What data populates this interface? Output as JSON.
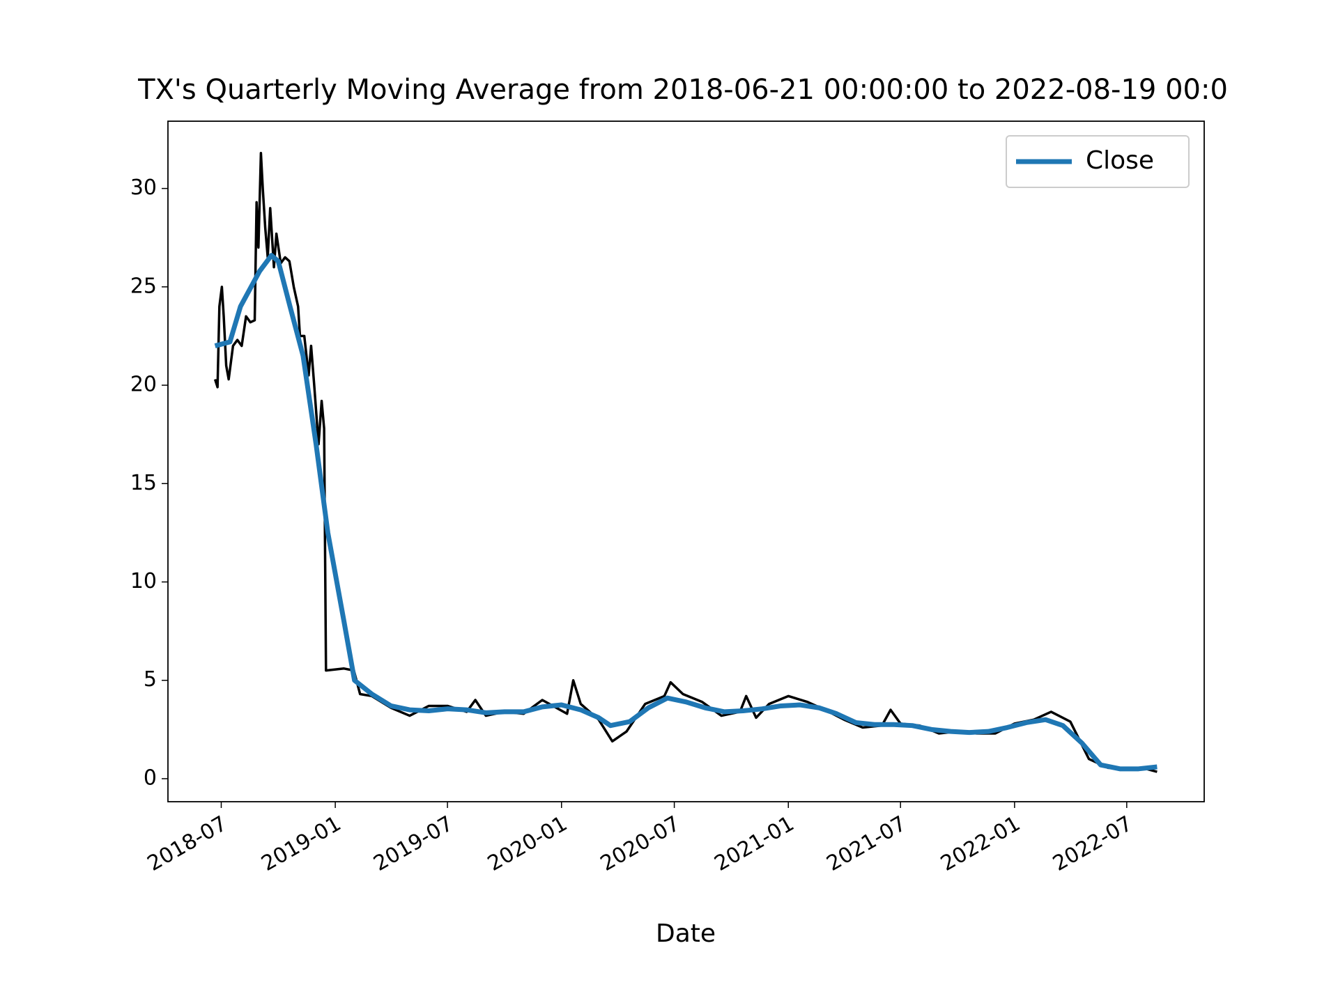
{
  "chart_data": {
    "type": "line",
    "title": "TX's Quarterly Moving Average from 2018-06-21 00:00:00 to 2022-08-19 00:0",
    "x_label": "Date",
    "xlim": [
      "2018-04-06",
      "2022-11-03"
    ],
    "xticks": [
      "2018-07",
      "2019-01",
      "2019-07",
      "2020-01",
      "2020-07",
      "2021-01",
      "2021-07",
      "2022-01",
      "2022-07"
    ],
    "ylim": [
      -1.17,
      33.42
    ],
    "yticks": [
      0,
      5,
      10,
      15,
      20,
      25,
      30
    ],
    "legend": "upper right",
    "series": [
      {
        "color": "#000000",
        "x": [
          "2018-06-21",
          "2018-06-25",
          "2018-06-28",
          "2018-07-02",
          "2018-07-05",
          "2018-07-09",
          "2018-07-13",
          "2018-07-20",
          "2018-07-27",
          "2018-08-03",
          "2018-08-10",
          "2018-08-17",
          "2018-08-24",
          "2018-08-27",
          "2018-08-30",
          "2018-09-03",
          "2018-09-06",
          "2018-09-10",
          "2018-09-14",
          "2018-09-18",
          "2018-09-24",
          "2018-09-28",
          "2018-10-05",
          "2018-10-12",
          "2018-10-19",
          "2018-10-26",
          "2018-11-02",
          "2018-11-05",
          "2018-11-12",
          "2018-11-19",
          "2018-11-23",
          "2018-11-28",
          "2018-12-05",
          "2018-12-10",
          "2018-12-14",
          "2018-12-17",
          "2019-01-15",
          "2019-01-31",
          "2019-02-10",
          "2019-03-01",
          "2019-04-01",
          "2019-05-01",
          "2019-06-01",
          "2019-07-01",
          "2019-08-01",
          "2019-08-15",
          "2019-09-01",
          "2019-10-01",
          "2019-11-01",
          "2019-12-01",
          "2020-01-10",
          "2020-01-20",
          "2020-02-01",
          "2020-03-01",
          "2020-03-23",
          "2020-04-15",
          "2020-05-15",
          "2020-06-15",
          "2020-06-25",
          "2020-07-15",
          "2020-08-15",
          "2020-09-15",
          "2020-10-15",
          "2020-10-25",
          "2020-11-10",
          "2020-12-01",
          "2021-01-01",
          "2021-02-01",
          "2021-03-01",
          "2021-04-01",
          "2021-05-01",
          "2021-06-01",
          "2021-06-15",
          "2021-07-01",
          "2021-08-01",
          "2021-09-01",
          "2021-10-01",
          "2021-11-01",
          "2021-12-01",
          "2022-01-01",
          "2022-02-01",
          "2022-03-01",
          "2022-04-01",
          "2022-05-01",
          "2022-06-01",
          "2022-07-01",
          "2022-08-01",
          "2022-08-19"
        ],
        "values": [
          20.3,
          19.9,
          24.0,
          25.0,
          23.5,
          21.0,
          20.3,
          22.0,
          22.3,
          22.0,
          23.5,
          23.2,
          23.3,
          29.3,
          27.0,
          31.8,
          30.0,
          28.0,
          26.5,
          29.0,
          26.0,
          27.7,
          26.2,
          26.5,
          26.3,
          25.0,
          24.0,
          22.5,
          22.5,
          20.5,
          22.0,
          20.0,
          17.0,
          19.2,
          17.8,
          5.5,
          5.6,
          5.5,
          4.3,
          4.2,
          3.6,
          3.2,
          3.7,
          3.7,
          3.4,
          4.0,
          3.2,
          3.4,
          3.3,
          4.0,
          3.3,
          5.0,
          3.8,
          3.0,
          1.9,
          2.4,
          3.8,
          4.2,
          4.9,
          4.3,
          3.9,
          3.2,
          3.4,
          4.2,
          3.1,
          3.8,
          4.2,
          3.9,
          3.5,
          3.0,
          2.6,
          2.7,
          3.5,
          2.8,
          2.7,
          2.3,
          2.4,
          2.3,
          2.3,
          2.8,
          3.0,
          3.4,
          2.9,
          1.0,
          0.55,
          0.55,
          0.5,
          0.35
        ]
      },
      {
        "name": "Close",
        "color": "#1f77b4",
        "x": [
          "2018-06-21",
          "2018-07-15",
          "2018-08-01",
          "2018-09-01",
          "2018-09-20",
          "2018-10-01",
          "2018-10-20",
          "2018-11-10",
          "2018-12-01",
          "2018-12-20",
          "2019-01-15",
          "2019-02-01",
          "2019-03-01",
          "2019-04-01",
          "2019-05-01",
          "2019-06-01",
          "2019-07-01",
          "2019-08-01",
          "2019-09-01",
          "2019-10-01",
          "2019-11-01",
          "2019-12-01",
          "2020-01-01",
          "2020-02-01",
          "2020-03-01",
          "2020-03-20",
          "2020-04-20",
          "2020-05-20",
          "2020-06-20",
          "2020-07-20",
          "2020-08-20",
          "2020-09-20",
          "2020-10-20",
          "2020-11-20",
          "2020-12-20",
          "2021-01-20",
          "2021-02-20",
          "2021-03-20",
          "2021-04-20",
          "2021-05-20",
          "2021-06-20",
          "2021-07-20",
          "2021-08-20",
          "2021-09-20",
          "2021-10-20",
          "2021-11-20",
          "2021-12-20",
          "2022-01-20",
          "2022-02-20",
          "2022-03-20",
          "2022-04-20",
          "2022-05-20",
          "2022-06-20",
          "2022-07-20",
          "2022-08-19"
        ],
        "values": [
          22.0,
          22.2,
          24.0,
          25.8,
          26.6,
          26.3,
          24.0,
          21.5,
          17.0,
          12.5,
          8.0,
          5.0,
          4.3,
          3.7,
          3.5,
          3.45,
          3.55,
          3.5,
          3.35,
          3.4,
          3.4,
          3.65,
          3.75,
          3.5,
          3.1,
          2.7,
          2.9,
          3.6,
          4.1,
          3.9,
          3.6,
          3.4,
          3.45,
          3.55,
          3.7,
          3.75,
          3.6,
          3.3,
          2.85,
          2.75,
          2.75,
          2.7,
          2.5,
          2.4,
          2.35,
          2.4,
          2.6,
          2.85,
          3.0,
          2.7,
          1.8,
          0.7,
          0.5,
          0.5,
          0.6
        ]
      }
    ]
  }
}
